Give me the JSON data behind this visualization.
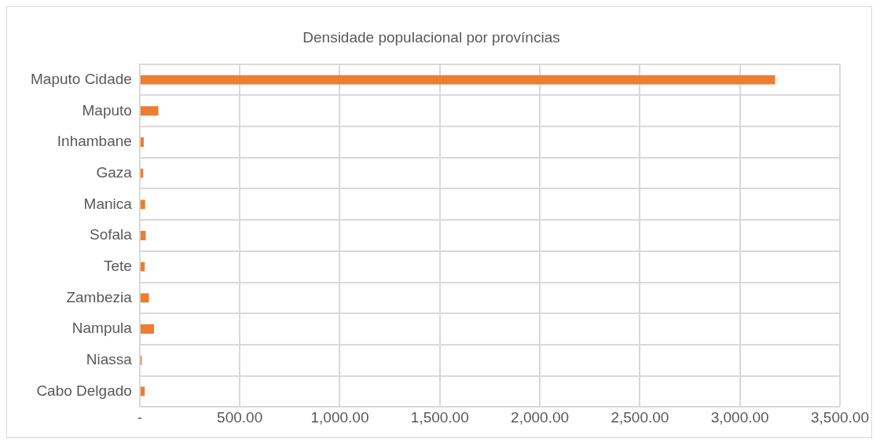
{
  "chart_data": {
    "type": "bar",
    "orientation": "horizontal",
    "title": "Densidade populacional por províncias",
    "categories": [
      "Maputo Cidade",
      "Maputo",
      "Inhambane",
      "Gaza",
      "Manica",
      "Sofala",
      "Tete",
      "Zambezia",
      "Nampula",
      "Niassa",
      "Cabo Delgado"
    ],
    "values": [
      3176,
      93,
      20,
      17,
      27,
      30,
      25,
      46,
      71,
      10,
      25
    ],
    "color": "#ed7d31",
    "xlim": [
      0,
      3500
    ],
    "xticks": [
      {
        "value": 0,
        "label": "-"
      },
      {
        "value": 500,
        "label": "500.00"
      },
      {
        "value": 1000,
        "label": "1,000.00"
      },
      {
        "value": 1500,
        "label": "1,500.00"
      },
      {
        "value": 2000,
        "label": "2,000.00"
      },
      {
        "value": 2500,
        "label": "2,500.00"
      },
      {
        "value": 3000,
        "label": "3,000.00"
      },
      {
        "value": 3500,
        "label": "3,500.00"
      }
    ],
    "grid": true
  }
}
